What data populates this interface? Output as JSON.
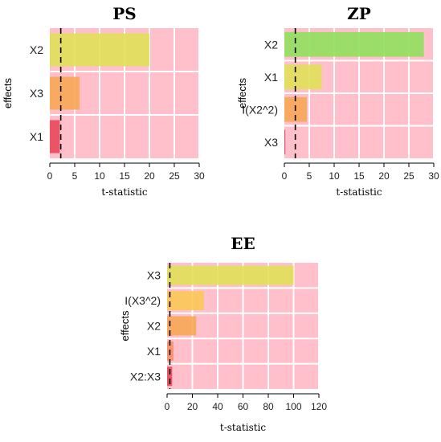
{
  "colors": {
    "panel_bg": "#ffc0cb",
    "grid": "#ffffff",
    "ref_line": "#000000"
  },
  "chart_data": [
    {
      "type": "bar",
      "orientation": "horizontal",
      "title": "PS",
      "xlabel": "t-statistic",
      "ylabel": "effects",
      "xlim": [
        0,
        30
      ],
      "xticks": [
        0,
        5,
        10,
        15,
        20,
        25,
        30
      ],
      "categories": [
        "X2",
        "X3",
        "X1"
      ],
      "values": [
        20,
        6,
        2
      ],
      "bar_colors": [
        "#e2e05a",
        "#f7a85a",
        "#ea4a5c"
      ],
      "reference_line": 2.2,
      "grid": true
    },
    {
      "type": "bar",
      "orientation": "horizontal",
      "title": "ZP",
      "xlabel": "t-statistic",
      "ylabel": "effects",
      "xlim": [
        0,
        30
      ],
      "xticks": [
        0,
        5,
        10,
        15,
        20,
        25,
        30
      ],
      "categories": [
        "X2",
        "X1",
        "I(X2^2)",
        "X3"
      ],
      "values": [
        28,
        7.5,
        4.5,
        0.2
      ],
      "bar_colors": [
        "#92e060",
        "#e2e05a",
        "#f7a85a",
        "#ea4a5c"
      ],
      "reference_line": 2.2,
      "grid": true
    },
    {
      "type": "bar",
      "orientation": "horizontal",
      "title": "EE",
      "xlabel": "t-statistic",
      "ylabel": "effects",
      "xlim": [
        0,
        120
      ],
      "xticks": [
        0,
        20,
        40,
        60,
        80,
        100,
        120
      ],
      "categories": [
        "X3",
        "I(X3^2)",
        "X2",
        "X1",
        "X2:X3"
      ],
      "values": [
        100,
        29,
        23,
        5,
        4
      ],
      "bar_colors": [
        "#e2e05a",
        "#fbc85a",
        "#f7a85a",
        "#f88f68",
        "#ea4a5c"
      ],
      "reference_line": 2.2,
      "grid": true
    }
  ]
}
